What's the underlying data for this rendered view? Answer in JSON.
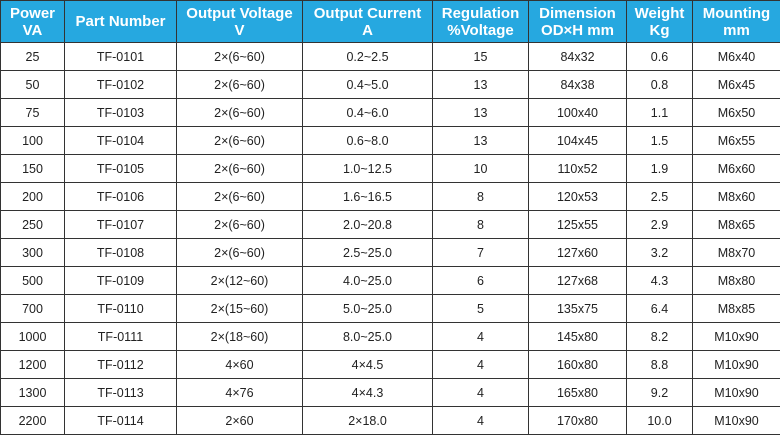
{
  "colors": {
    "header_bg": "#26a8e0",
    "header_text": "#ffffff",
    "border": "#333333",
    "cell_text": "#222222"
  },
  "table": {
    "headers": [
      [
        "Power",
        "VA"
      ],
      [
        "Part Number",
        ""
      ],
      [
        "Output Voltage",
        "V"
      ],
      [
        "Output Current",
        "A"
      ],
      [
        "Regulation",
        "%Voltage"
      ],
      [
        "Dimension",
        "OD×H mm"
      ],
      [
        "Weight",
        "Kg"
      ],
      [
        "Mounting",
        "mm"
      ]
    ],
    "rows": [
      [
        "25",
        "TF-0101",
        "2×(6~60)",
        "0.2~2.5",
        "15",
        "84x32",
        "0.6",
        "M6x40"
      ],
      [
        "50",
        "TF-0102",
        "2×(6~60)",
        "0.4~5.0",
        "13",
        "84x38",
        "0.8",
        "M6x45"
      ],
      [
        "75",
        "TF-0103",
        "2×(6~60)",
        "0.4~6.0",
        "13",
        "100x40",
        "1.1",
        "M6x50"
      ],
      [
        "100",
        "TF-0104",
        "2×(6~60)",
        "0.6~8.0",
        "13",
        "104x45",
        "1.5",
        "M6x55"
      ],
      [
        "150",
        "TF-0105",
        "2×(6~60)",
        "1.0~12.5",
        "10",
        "110x52",
        "1.9",
        "M6x60"
      ],
      [
        "200",
        "TF-0106",
        "2×(6~60)",
        "1.6~16.5",
        "8",
        "120x53",
        "2.5",
        "M8x60"
      ],
      [
        "250",
        "TF-0107",
        "2×(6~60)",
        "2.0~20.8",
        "8",
        "125x55",
        "2.9",
        "M8x65"
      ],
      [
        "300",
        "TF-0108",
        "2×(6~60)",
        "2.5~25.0",
        "7",
        "127x60",
        "3.2",
        "M8x70"
      ],
      [
        "500",
        "TF-0109",
        "2×(12~60)",
        "4.0~25.0",
        "6",
        "127x68",
        "4.3",
        "M8x80"
      ],
      [
        "700",
        "TF-0110",
        "2×(15~60)",
        "5.0~25.0",
        "5",
        "135x75",
        "6.4",
        "M8x85"
      ],
      [
        "1000",
        "TF-0111",
        "2×(18~60)",
        "8.0~25.0",
        "4",
        "145x80",
        "8.2",
        "M10x90"
      ],
      [
        "1200",
        "TF-0112",
        "4×60",
        "4×4.5",
        "4",
        "160x80",
        "8.8",
        "M10x90"
      ],
      [
        "1300",
        "TF-0113",
        "4×76",
        "4×4.3",
        "4",
        "165x80",
        "9.2",
        "M10x90"
      ],
      [
        "2200",
        "TF-0114",
        "2×60",
        "2×18.0",
        "4",
        "170x80",
        "10.0",
        "M10x90"
      ]
    ]
  }
}
